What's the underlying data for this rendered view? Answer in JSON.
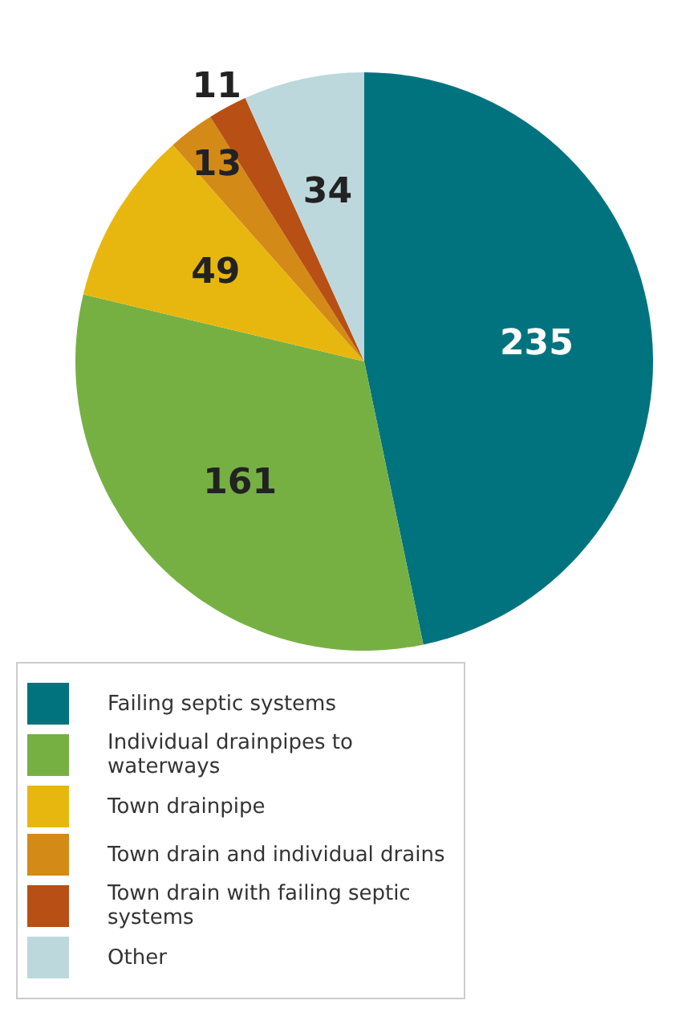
{
  "chart_data": {
    "type": "pie",
    "categories": [
      "Failing septic systems",
      "Individual drainpipes to waterways",
      "Town drainpipe",
      "Town drain and individual drains",
      "Town drain with failing septic systems",
      "Other"
    ],
    "values": [
      235,
      161,
      49,
      13,
      11,
      34
    ],
    "colors": [
      "#00737f",
      "#76b043",
      "#e8b70f",
      "#d48a16",
      "#b84f14",
      "#bcd8dd"
    ],
    "data_labels": true,
    "legend": "bottom left"
  }
}
